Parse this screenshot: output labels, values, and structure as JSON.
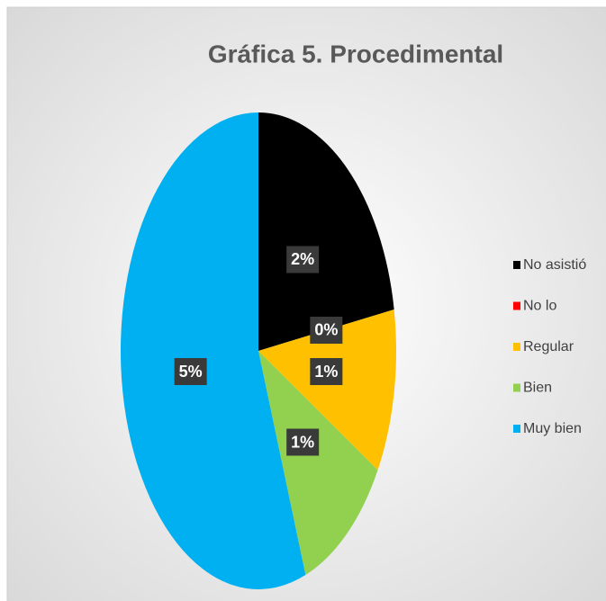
{
  "chart_data": {
    "type": "pie",
    "title": "Gráfica 5. Procedimental",
    "categories": [
      "No asistió",
      "No lo",
      "Regular",
      "Bien",
      "Muy bien"
    ],
    "values": [
      2,
      0,
      1,
      1,
      5
    ],
    "value_labels": [
      "2%",
      "0%",
      "1%",
      "1%",
      "5%"
    ],
    "colors": [
      "#000000",
      "#ff0000",
      "#ffc000",
      "#92d050",
      "#00b0f0"
    ],
    "legend": "right"
  }
}
